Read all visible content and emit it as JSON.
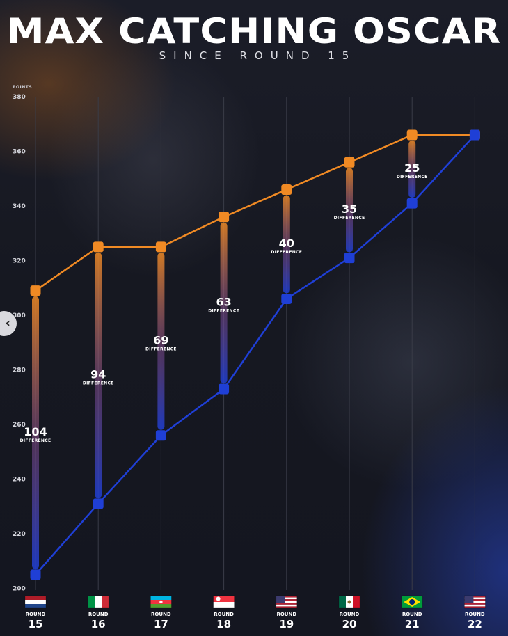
{
  "header": {
    "title": "MAX CATCHING OSCAR",
    "subtitle": "SINCE ROUND 15"
  },
  "colors": {
    "oscar_line": "#f08a24",
    "max_line": "#1f3fd6",
    "gridline": "#3a3c48",
    "text": "#ffffff"
  },
  "chart_data": {
    "type": "line",
    "y_unit_label": "POINTS",
    "ylim": [
      200,
      380
    ],
    "y_ticks": [
      200,
      220,
      240,
      260,
      280,
      300,
      320,
      340,
      360,
      380
    ],
    "grid": "vertical",
    "x_prefix": "ROUND",
    "categories": [
      "15",
      "16",
      "17",
      "18",
      "19",
      "20",
      "21",
      "22"
    ],
    "flags": [
      "flag-netherlands",
      "flag-italy",
      "flag-azerbaijan",
      "flag-singapore",
      "flag-usa",
      "flag-mexico",
      "flag-brazil",
      "flag-usa"
    ],
    "series": [
      {
        "color": "#f08a24",
        "values": [
          309,
          325,
          325,
          336,
          346,
          356,
          366,
          366
        ]
      },
      {
        "color": "#1f3fd6",
        "values": [
          205,
          231,
          256,
          273,
          306,
          321,
          341,
          366
        ]
      }
    ],
    "difference_word": "DIFFERENCE",
    "differences": [
      104,
      94,
      69,
      63,
      40,
      35,
      25,
      null
    ]
  },
  "nav": {
    "prev_icon": "chevron-left-icon",
    "prev_glyph": "‹"
  }
}
